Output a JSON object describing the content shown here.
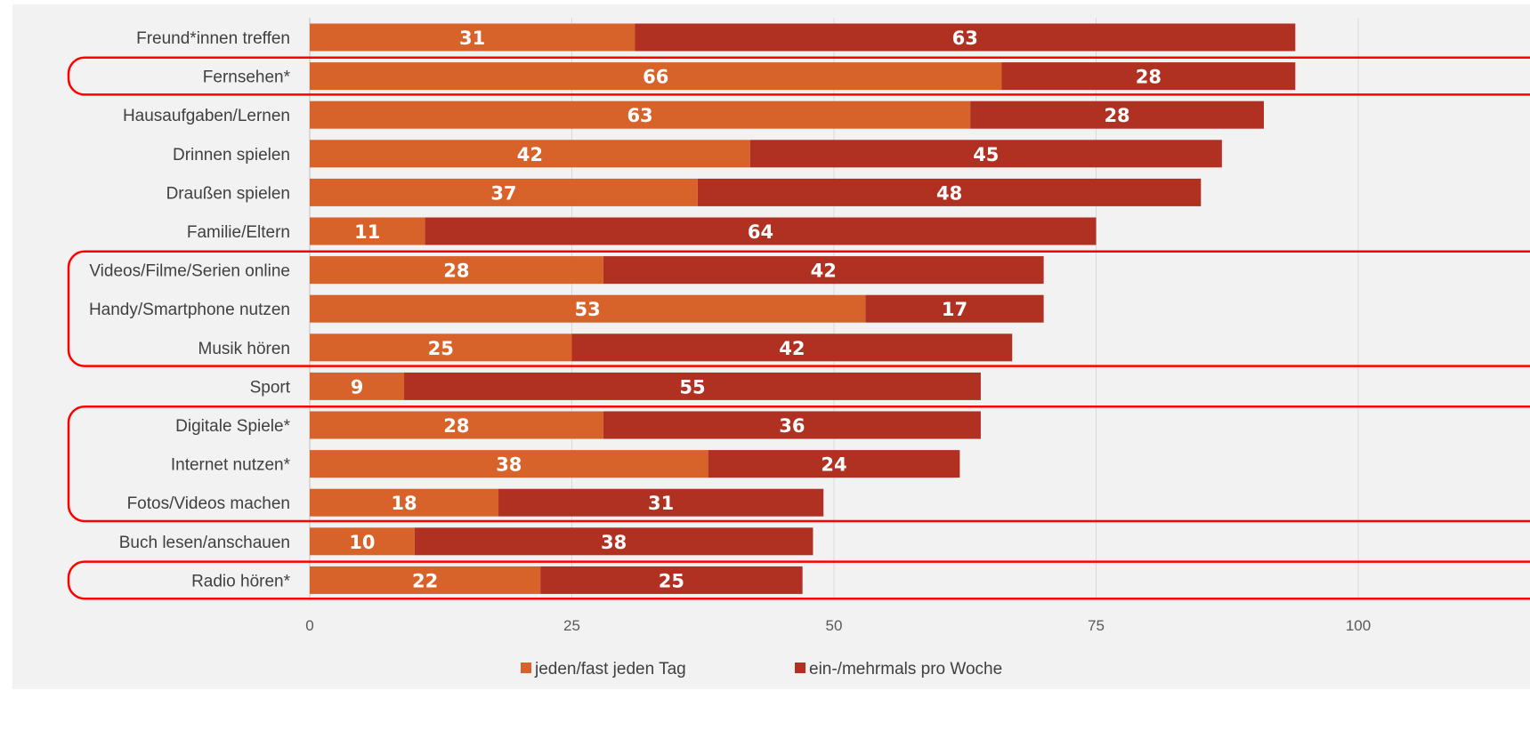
{
  "chart_data": {
    "type": "bar",
    "orientation": "horizontal",
    "stacked": true,
    "categories": [
      "Freund*innen treffen",
      "Fernsehen*",
      "Hausaufgaben/Lernen",
      "Drinnen spielen",
      "Draußen spielen",
      "Familie/Eltern",
      "Videos/Filme/Serien online",
      "Handy/Smartphone nutzen",
      "Musik hören",
      "Sport",
      "Digitale Spiele*",
      "Internet nutzen*",
      "Fotos/Videos machen",
      "Buch lesen/anschauen",
      "Radio hören*"
    ],
    "series": [
      {
        "name": "jeden/fast jeden Tag",
        "color": "#d8632a",
        "values": [
          31,
          66,
          63,
          42,
          37,
          11,
          28,
          53,
          25,
          9,
          28,
          38,
          18,
          10,
          22
        ]
      },
      {
        "name": "ein-/mehrmals pro Woche",
        "color": "#b03022",
        "values": [
          63,
          28,
          28,
          45,
          48,
          64,
          42,
          17,
          42,
          55,
          36,
          24,
          31,
          38,
          25
        ]
      }
    ],
    "xlim": [
      0,
      100
    ],
    "xticks": [
      "0",
      "25",
      "50",
      "75",
      "100"
    ],
    "grid": true,
    "legend_position": "bottom",
    "highlight_color": "#ff0000",
    "highlighted_groups": [
      [
        "Fernsehen*"
      ],
      [
        "Videos/Filme/Serien online",
        "Handy/Smartphone nutzen",
        "Musik hören"
      ],
      [
        "Digitale Spiele*",
        "Internet nutzen*",
        "Fotos/Videos machen"
      ],
      [
        "Radio hören*"
      ]
    ]
  }
}
